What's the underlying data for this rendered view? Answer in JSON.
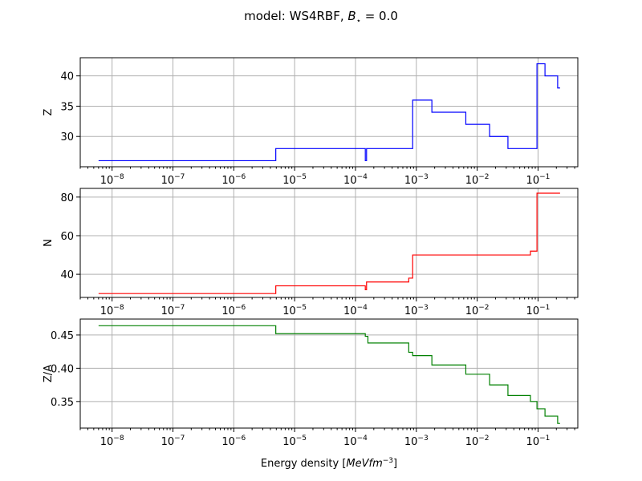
{
  "title": "model: WS4RBF, B⋆ = 0.0",
  "title_parts": {
    "prefix": "model: WS4RBF, ",
    "var": "B",
    "sub": "⋆",
    "suffix": " = 0.0"
  },
  "xlabel": {
    "prefix": "Energy density [",
    "italic": "MeVfm",
    "sup": "−3",
    "suffix": "]"
  },
  "x_ticks": [
    {
      "value": 1e-08,
      "base": "10",
      "exp": "−8"
    },
    {
      "value": 1e-07,
      "base": "10",
      "exp": "−7"
    },
    {
      "value": 1e-06,
      "base": "10",
      "exp": "−6"
    },
    {
      "value": 1e-05,
      "base": "10",
      "exp": "−5"
    },
    {
      "value": 0.0001,
      "base": "10",
      "exp": "−4"
    },
    {
      "value": 0.001,
      "base": "10",
      "exp": "−3"
    },
    {
      "value": 0.01,
      "base": "10",
      "exp": "−2"
    },
    {
      "value": 0.1,
      "base": "10",
      "exp": "−1"
    }
  ],
  "chart_data": [
    {
      "type": "line",
      "xscale": "log",
      "xlim": [
        3e-09,
        0.45
      ],
      "ylim": [
        25,
        43
      ],
      "ylabel": "Z",
      "yticks": [
        30,
        35,
        40
      ],
      "grid": true,
      "color": "#0000ff",
      "x": [
        6e-09,
        4.9e-06,
        4.9e-06,
        0.000145,
        0.000145,
        0.000152,
        0.000152,
        0.00087,
        0.00087,
        0.0018,
        0.0018,
        0.0065,
        0.0065,
        0.016,
        0.016,
        0.032,
        0.032,
        0.096,
        0.096,
        0.13,
        0.13,
        0.21,
        0.21,
        0.23
      ],
      "y": [
        26,
        26,
        28,
        28,
        26,
        26,
        28,
        28,
        36,
        36,
        34,
        34,
        32,
        32,
        30,
        30,
        28,
        28,
        42,
        42,
        40,
        40,
        38,
        38
      ]
    },
    {
      "type": "line",
      "xscale": "log",
      "xlim": [
        3e-09,
        0.45
      ],
      "ylim": [
        28,
        84.5
      ],
      "ylabel": "N",
      "yticks": [
        40,
        60,
        80
      ],
      "grid": true,
      "color": "#ff0000",
      "x": [
        6e-09,
        4.9e-06,
        4.9e-06,
        0.000145,
        0.000145,
        0.000152,
        0.000152,
        0.00075,
        0.00075,
        0.00087,
        0.00087,
        0.075,
        0.075,
        0.096,
        0.096,
        0.23
      ],
      "y": [
        30,
        30,
        34,
        34,
        32,
        32,
        36,
        36,
        38,
        38,
        50,
        50,
        52,
        52,
        82,
        82
      ]
    },
    {
      "type": "line",
      "xscale": "log",
      "xlim": [
        3e-09,
        0.45
      ],
      "ylim": [
        0.31,
        0.474
      ],
      "ylabel": "Z/A",
      "yticks": [
        0.35,
        0.4,
        0.45
      ],
      "grid": true,
      "color": "#008000",
      "x": [
        6e-09,
        4.9e-06,
        4.9e-06,
        0.000145,
        0.000145,
        0.00016,
        0.00016,
        0.00075,
        0.00075,
        0.00087,
        0.00087,
        0.0018,
        0.0018,
        0.0065,
        0.0065,
        0.016,
        0.016,
        0.032,
        0.032,
        0.075,
        0.075,
        0.096,
        0.096,
        0.13,
        0.13,
        0.21,
        0.21,
        0.23
      ],
      "y": [
        0.464,
        0.464,
        0.452,
        0.452,
        0.448,
        0.448,
        0.438,
        0.438,
        0.424,
        0.424,
        0.419,
        0.419,
        0.405,
        0.405,
        0.391,
        0.391,
        0.375,
        0.375,
        0.359,
        0.359,
        0.35,
        0.35,
        0.339,
        0.339,
        0.328,
        0.328,
        0.317,
        0.317
      ]
    }
  ]
}
